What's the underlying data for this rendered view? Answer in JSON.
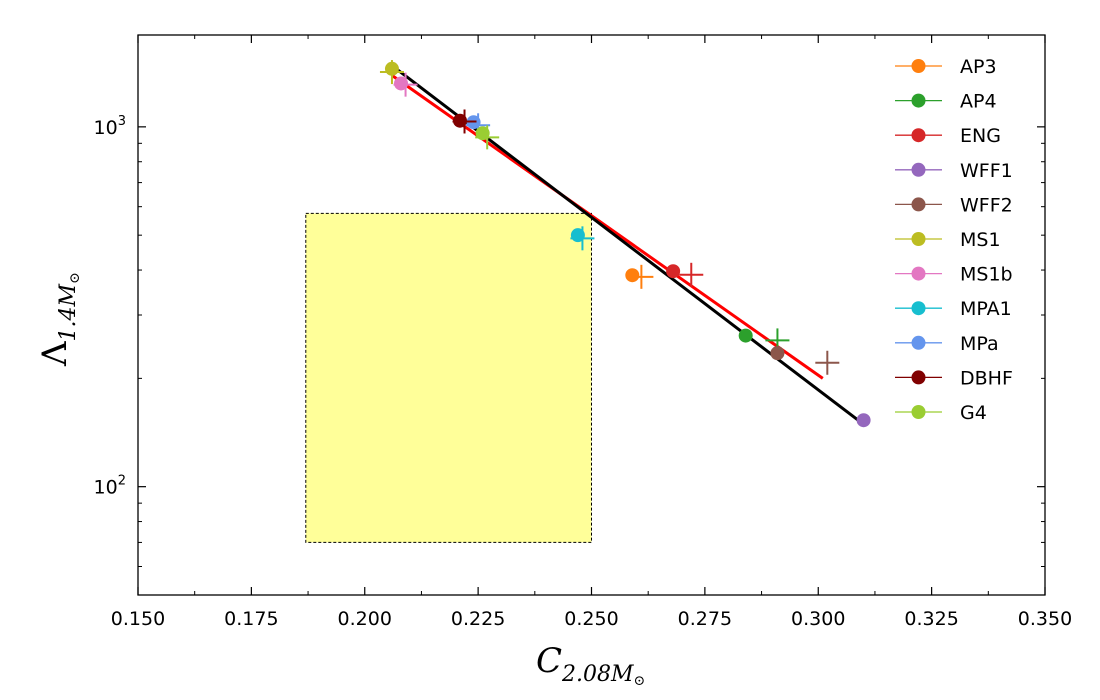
{
  "chart_data": {
    "type": "scatter",
    "xlabel": {
      "main": "C",
      "sub": "2.08M",
      "sub_symbol": "⊙"
    },
    "ylabel": {
      "main": "Λ",
      "sub": "1.4M",
      "sub_symbol": "⊙"
    },
    "xlim": [
      0.15,
      0.35
    ],
    "ylim": [
      50,
      1800
    ],
    "y_scale": "log",
    "x_ticks": [
      "0.150",
      "0.175",
      "0.200",
      "0.225",
      "0.250",
      "0.275",
      "0.300",
      "0.325",
      "0.350"
    ],
    "y_ticks": [
      {
        "value": 100,
        "base": "10",
        "exp": "2"
      },
      {
        "value": 1000,
        "base": "10",
        "exp": "3"
      }
    ],
    "grid": false,
    "legend_position": "top-right",
    "shaded_region": {
      "x": [
        0.187,
        0.25
      ],
      "y": [
        70,
        575
      ],
      "fill": "#ffff99",
      "border": "dashed"
    },
    "series": [
      {
        "name": "AP3",
        "color": "#ff7f0e",
        "dot": [
          0.259,
          387
        ],
        "cross": [
          0.261,
          383
        ]
      },
      {
        "name": "AP4",
        "color": "#2ca02c",
        "dot": [
          0.284,
          263
        ],
        "cross": [
          0.291,
          255
        ]
      },
      {
        "name": "ENG",
        "color": "#d62728",
        "dot": [
          0.268,
          397
        ],
        "cross": [
          0.272,
          388
        ]
      },
      {
        "name": "WFF1",
        "color": "#9467bd",
        "dot": [
          0.31,
          153
        ],
        "cross": null
      },
      {
        "name": "WFF2",
        "color": "#8c564b",
        "dot": [
          0.291,
          235
        ],
        "cross": [
          0.302,
          221
        ]
      },
      {
        "name": "MS1",
        "color": "#bcbd22",
        "dot": [
          0.206,
          1450
        ],
        "cross": [
          0.206,
          1420
        ]
      },
      {
        "name": "MS1b",
        "color": "#e377c2",
        "dot": [
          0.208,
          1320
        ],
        "cross": [
          0.209,
          1310
        ]
      },
      {
        "name": "MPA1",
        "color": "#17becf",
        "dot": [
          0.247,
          500
        ],
        "cross": [
          0.248,
          490
        ]
      },
      {
        "name": "MPa",
        "color": "#6495ed",
        "dot": [
          0.224,
          1030
        ],
        "cross": [
          0.225,
          1010
        ]
      },
      {
        "name": "DBHF",
        "color": "#800000",
        "dot": [
          0.221,
          1040
        ],
        "cross": [
          0.222,
          1035
        ]
      },
      {
        "name": "G4",
        "color": "#9acd32",
        "dot": [
          0.226,
          960
        ],
        "cross": [
          0.227,
          935
        ]
      }
    ],
    "fit_lines": [
      {
        "color": "#ff0000",
        "from": [
          0.206,
          1390
        ],
        "to": [
          0.301,
          200
        ]
      },
      {
        "color": "#000000",
        "from": [
          0.206,
          1480
        ],
        "to": [
          0.31,
          149
        ]
      }
    ]
  }
}
